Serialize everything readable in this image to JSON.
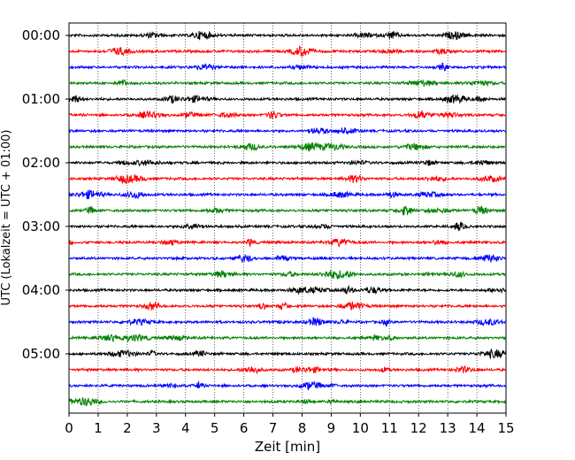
{
  "chart_data": {
    "type": "line",
    "xlabel": "Zeit  [min]",
    "ylabel": "UTC (Lokalzeit = UTC + 01:00)",
    "xlim": [
      0,
      15
    ],
    "x_ticks": [
      0,
      1,
      2,
      3,
      4,
      5,
      6,
      7,
      8,
      9,
      10,
      11,
      12,
      13,
      14,
      15
    ],
    "y_tick_labels": [
      "00:00",
      "01:00",
      "02:00",
      "03:00",
      "04:00",
      "05:00"
    ],
    "trace_interval_min": 15,
    "trace_count": 24,
    "trace_colors": [
      "#000000",
      "#ff0000",
      "#0000ff",
      "#008000"
    ],
    "grid": "vertical-dotted"
  }
}
